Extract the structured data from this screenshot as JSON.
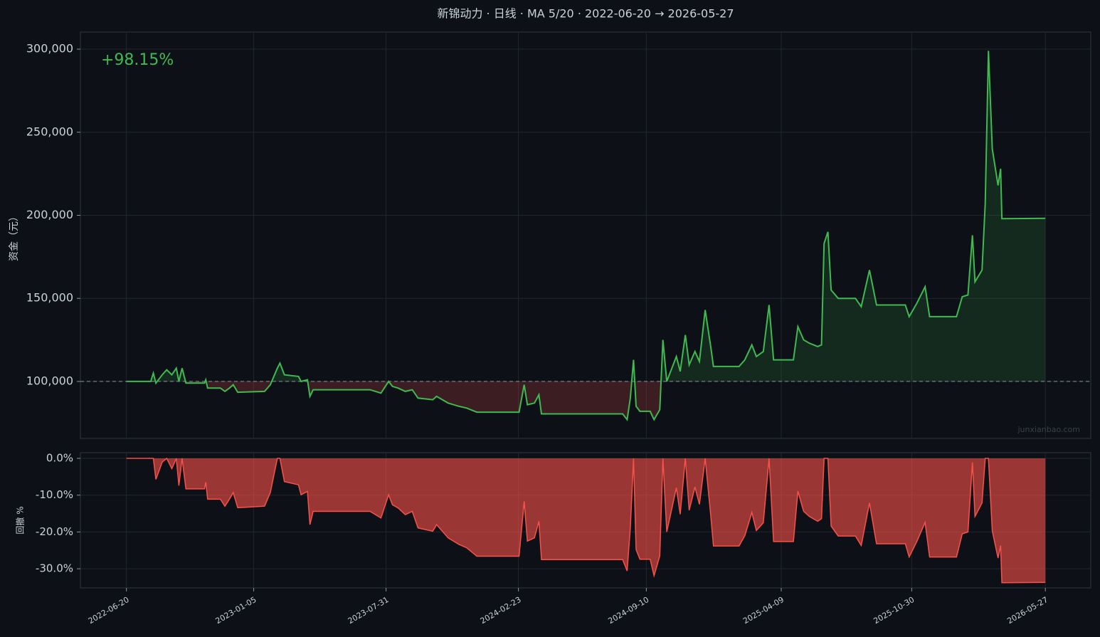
{
  "chart_data": [
    {
      "type": "line",
      "title": "新锦动力 · 日线 · MA 5/20 · 2022-06-20 → 2026-05-27",
      "ylabel": "资金（元）",
      "annotation": "+98.15%",
      "watermark": "junxianbao.com",
      "baseline": 100000,
      "grid": true,
      "xlim": [
        "2022-04-09",
        "2026-08-06"
      ],
      "xticks": [
        "2022-06-20",
        "2023-01-05",
        "2023-07-31",
        "2024-02-23",
        "2024-09-10",
        "2025-04-09",
        "2025-10-30",
        "2026-05-27"
      ],
      "ylim": [
        65700,
        310300
      ],
      "yticks": [
        {
          "value": 100000,
          "label": "100,000"
        },
        {
          "value": 150000,
          "label": "150,000"
        },
        {
          "value": 200000,
          "label": "200,000"
        },
        {
          "value": 250000,
          "label": "250,000"
        },
        {
          "value": 300000,
          "label": "300,000"
        }
      ],
      "x": [
        "2022-06-20",
        "2022-07-28",
        "2022-08-01",
        "2022-08-05",
        "2022-08-15",
        "2022-08-22",
        "2022-08-30",
        "2022-09-06",
        "2022-09-10",
        "2022-09-15",
        "2022-09-21",
        "2022-10-20",
        "2022-10-22",
        "2022-10-25",
        "2022-11-14",
        "2022-11-21",
        "2022-11-28",
        "2022-12-04",
        "2022-12-11",
        "2023-01-22",
        "2023-01-31",
        "2023-02-11",
        "2023-02-15",
        "2023-02-22",
        "2023-03-16",
        "2023-03-20",
        "2023-03-30",
        "2023-04-03",
        "2023-04-08",
        "2023-07-06",
        "2023-07-23",
        "2023-08-04",
        "2023-08-10",
        "2023-08-19",
        "2023-08-30",
        "2023-09-10",
        "2023-09-19",
        "2023-10-12",
        "2023-10-18",
        "2023-11-05",
        "2023-11-22",
        "2023-12-04",
        "2023-12-20",
        "2024-02-24",
        "2024-03-03",
        "2024-03-08",
        "2024-03-19",
        "2024-03-26",
        "2024-03-30",
        "2024-08-04",
        "2024-08-11",
        "2024-08-16",
        "2024-08-21",
        "2024-08-25",
        "2024-08-31",
        "2024-09-16",
        "2024-09-22",
        "2024-10-01",
        "2024-10-06",
        "2024-10-12",
        "2024-10-20",
        "2024-10-27",
        "2024-11-02",
        "2024-11-10",
        "2024-11-16",
        "2024-11-25",
        "2024-12-02",
        "2024-12-11",
        "2024-12-20",
        "2024-12-24",
        "2025-02-02",
        "2025-02-11",
        "2025-02-22",
        "2025-03-01",
        "2025-03-12",
        "2025-03-21",
        "2025-03-28",
        "2025-04-28",
        "2025-05-05",
        "2025-05-14",
        "2025-05-23",
        "2025-06-05",
        "2025-06-11",
        "2025-06-15",
        "2025-06-21",
        "2025-06-26",
        "2025-07-07",
        "2025-08-03",
        "2025-08-12",
        "2025-08-25",
        "2025-09-05",
        "2025-10-20",
        "2025-10-26",
        "2025-11-07",
        "2025-11-20",
        "2025-11-27",
        "2026-01-08",
        "2026-01-17",
        "2026-01-26",
        "2026-02-02",
        "2026-02-06",
        "2026-02-17",
        "2026-02-22",
        "2026-02-27",
        "2026-03-05",
        "2026-03-14",
        "2026-03-18",
        "2026-03-20",
        "2026-05-27"
      ],
      "series": [
        {
          "color": "#3fb950",
          "values": [
            100000,
            100000,
            105000,
            99000,
            104000,
            107000,
            104000,
            108000,
            100000,
            108000,
            99000,
            99000,
            101000,
            96000,
            96000,
            94000,
            96000,
            98000,
            93500,
            94000,
            98000,
            108000,
            111000,
            104000,
            103000,
            100000,
            101000,
            91000,
            95000,
            95000,
            93000,
            100000,
            97000,
            96000,
            94000,
            95000,
            90000,
            89000,
            91000,
            87000,
            85000,
            84000,
            81500,
            81500,
            98000,
            86000,
            87000,
            92000,
            80500,
            80500,
            77000,
            90000,
            113000,
            85000,
            82000,
            82000,
            77000,
            83000,
            125000,
            100000,
            108000,
            115000,
            106000,
            128000,
            110000,
            118000,
            112000,
            143000,
            120000,
            109000,
            109000,
            113000,
            122000,
            115000,
            118000,
            146000,
            113000,
            113000,
            133000,
            125000,
            123000,
            121000,
            122000,
            183000,
            190000,
            155000,
            150000,
            150000,
            145000,
            167000,
            146000,
            146000,
            139000,
            147000,
            157000,
            139000,
            139000,
            151000,
            152000,
            188000,
            160000,
            167000,
            207000,
            299000,
            240000,
            218000,
            228000,
            198000,
            198150
          ]
        }
      ]
    },
    {
      "type": "area",
      "ylabel": "回撤 %",
      "ylim": [
        -35.2,
        1.55
      ],
      "yticks": [
        {
          "value": 0,
          "label": "0.0%"
        },
        {
          "value": -10,
          "label": "-10.0%"
        },
        {
          "value": -20,
          "label": "-20.0%"
        },
        {
          "value": -30,
          "label": "-30.0%"
        }
      ],
      "series": [
        {
          "color": "#f85149",
          "values": [
            0,
            0,
            0,
            -5.7,
            -1.0,
            0,
            -2.8,
            0,
            -7.4,
            0,
            -8.3,
            -8.3,
            -6.5,
            -11.1,
            -11.1,
            -13.0,
            -11.1,
            -9.3,
            -13.4,
            -13.0,
            -9.3,
            0,
            0,
            -6.3,
            -7.2,
            -9.9,
            -9.0,
            -18.0,
            -14.4,
            -14.4,
            -16.2,
            -9.9,
            -12.6,
            -13.5,
            -15.3,
            -14.4,
            -18.9,
            -19.8,
            -18.0,
            -21.6,
            -23.4,
            -24.3,
            -26.6,
            -26.6,
            -11.7,
            -22.5,
            -21.6,
            -17.1,
            -27.5,
            -27.5,
            -30.6,
            -18.9,
            0,
            -24.8,
            -27.4,
            -27.4,
            -31.9,
            -26.5,
            0,
            -20.0,
            -13.6,
            -8.0,
            -15.2,
            0,
            -14.1,
            -7.8,
            -12.5,
            0,
            -16.1,
            -23.8,
            -23.8,
            -21.0,
            -14.7,
            -19.6,
            -17.5,
            0,
            -22.6,
            -22.6,
            -8.9,
            -14.4,
            -15.8,
            -17.1,
            -16.4,
            0,
            0,
            -18.4,
            -21.1,
            -21.1,
            -23.7,
            -12.1,
            -23.2,
            -23.2,
            -26.8,
            -22.6,
            -17.4,
            -26.8,
            -26.8,
            -20.5,
            -20.0,
            -1.1,
            -15.8,
            -12.1,
            0,
            0,
            -19.7,
            -27.1,
            -23.7,
            -33.8,
            -33.7
          ]
        }
      ]
    }
  ]
}
